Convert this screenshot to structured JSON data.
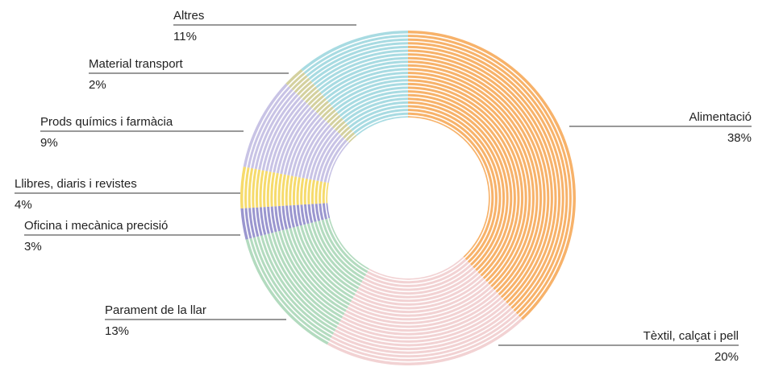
{
  "chart_data": {
    "type": "donut",
    "categories": [
      "Alimentació",
      "Tèxtil, calçat i pell",
      "Parament de la llar",
      "Oficina i mecànica precisió",
      "Llibres, diaris i revistes",
      "Prods químics i farmàcia",
      "Material transport",
      "Altres"
    ],
    "values": [
      38,
      20,
      13,
      3,
      4,
      9,
      2,
      11
    ],
    "value_labels": [
      "38%",
      "20%",
      "13%",
      "3%",
      "4%",
      "9%",
      "2%",
      "11%"
    ],
    "colors": [
      "#f7b26a",
      "#f2d2d3",
      "#b3dbbf",
      "#9a96cf",
      "#f6db6c",
      "#c8c3e5",
      "#d4d19f",
      "#a8dbe2"
    ]
  }
}
